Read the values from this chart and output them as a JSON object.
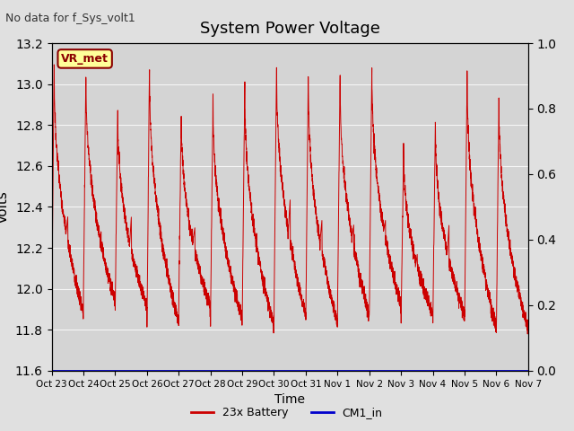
{
  "title": "System Power Voltage",
  "subtitle": "No data for f_Sys_volt1",
  "ylabel": "Volts",
  "xlabel": "Time",
  "ylim_left": [
    11.6,
    13.2
  ],
  "ylim_right": [
    0.0,
    1.0
  ],
  "yticks_left": [
    11.6,
    11.8,
    12.0,
    12.2,
    12.4,
    12.6,
    12.8,
    13.0,
    13.2
  ],
  "yticks_right": [
    0.0,
    0.2,
    0.4,
    0.6,
    0.8,
    1.0
  ],
  "fig_bg_color": "#e0e0e0",
  "plot_bg_color": "#d4d4d4",
  "line_color_battery": "#cc0000",
  "line_color_cm1": "#0000cc",
  "vr_met_label": "VR_met",
  "vr_met_bg": "#ffff99",
  "vr_met_border": "#8b0000",
  "legend_entries": [
    "23x Battery",
    "CM1_in"
  ],
  "legend_colors": [
    "#cc0000",
    "#0000cc"
  ],
  "n_days": 15,
  "x_tick_labels": [
    "Oct 23",
    "Oct 24",
    "Oct 25",
    "Oct 26",
    "Oct 27",
    "Oct 28",
    "Oct 29",
    "Oct 30",
    "Oct 31",
    "Nov 1",
    "Nov 2",
    "Nov 3",
    "Nov 4",
    "Nov 5",
    "Nov 6",
    "Nov 7"
  ]
}
